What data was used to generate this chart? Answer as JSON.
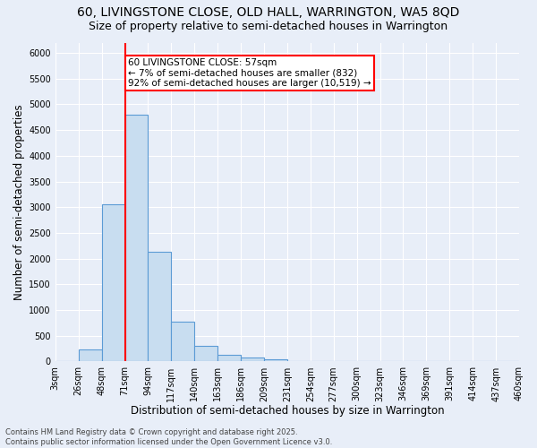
{
  "title_line1": "60, LIVINGSTONE CLOSE, OLD HALL, WARRINGTON, WA5 8QD",
  "title_line2": "Size of property relative to semi-detached houses in Warrington",
  "xlabel": "Distribution of semi-detached houses by size in Warrington",
  "ylabel": "Number of semi-detached properties",
  "footnote": "Contains HM Land Registry data © Crown copyright and database right 2025.\nContains public sector information licensed under the Open Government Licence v3.0.",
  "bins": [
    "3sqm",
    "26sqm",
    "48sqm",
    "71sqm",
    "94sqm",
    "117sqm",
    "140sqm",
    "163sqm",
    "186sqm",
    "209sqm",
    "231sqm",
    "254sqm",
    "277sqm",
    "300sqm",
    "323sqm",
    "346sqm",
    "369sqm",
    "391sqm",
    "414sqm",
    "437sqm",
    "460sqm"
  ],
  "values": [
    0,
    240,
    3050,
    4800,
    2130,
    780,
    305,
    130,
    70,
    50,
    0,
    0,
    0,
    0,
    0,
    0,
    0,
    0,
    0,
    0
  ],
  "bar_color": "#c8ddf0",
  "bar_edge_color": "#5b9bd5",
  "vline_color": "red",
  "vline_pos": 2.5,
  "annotation_text": "60 LIVINGSTONE CLOSE: 57sqm\n← 7% of semi-detached houses are smaller (832)\n92% of semi-detached houses are larger (10,519) →",
  "annotation_box_color": "white",
  "annotation_box_edge_color": "red",
  "ylim": [
    0,
    6200
  ],
  "yticks": [
    0,
    500,
    1000,
    1500,
    2000,
    2500,
    3000,
    3500,
    4000,
    4500,
    5000,
    5500,
    6000
  ],
  "bg_color": "#e8eef8",
  "grid_color": "#ffffff",
  "title_fontsize": 10,
  "subtitle_fontsize": 9,
  "axis_label_fontsize": 8.5,
  "tick_fontsize": 7,
  "annotation_fontsize": 7.5,
  "footnote_fontsize": 6
}
